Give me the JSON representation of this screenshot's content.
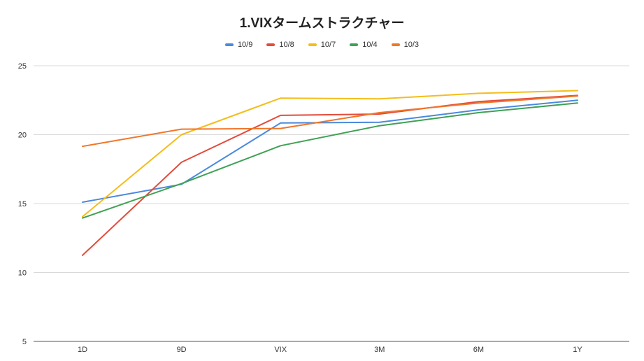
{
  "chart_data": {
    "type": "line",
    "title": "1.VIXタームストラクチャー",
    "xlabel": "",
    "ylabel": "",
    "categories": [
      "1D",
      "9D",
      "VIX",
      "3M",
      "6M",
      "1Y"
    ],
    "yticks": [
      "5",
      "10",
      "15",
      "20",
      "25"
    ],
    "ylim": [
      5,
      25
    ],
    "grid": true,
    "legend_position": "top",
    "series": [
      {
        "name": "10/9",
        "color": "#4a89dc",
        "values": [
          15.1,
          16.4,
          20.85,
          20.9,
          21.8,
          22.5
        ]
      },
      {
        "name": "10/8",
        "color": "#e34b3b",
        "values": [
          11.25,
          18.0,
          21.4,
          21.5,
          22.4,
          22.85
        ]
      },
      {
        "name": "10/7",
        "color": "#f4bd1b",
        "values": [
          14.05,
          20.0,
          22.65,
          22.6,
          23.0,
          23.2
        ]
      },
      {
        "name": "10/4",
        "color": "#3fa154",
        "values": [
          13.95,
          16.45,
          19.2,
          20.65,
          21.6,
          22.3
        ]
      },
      {
        "name": "10/3",
        "color": "#f07628",
        "values": [
          19.15,
          20.4,
          20.45,
          21.6,
          22.3,
          22.8
        ]
      }
    ]
  }
}
